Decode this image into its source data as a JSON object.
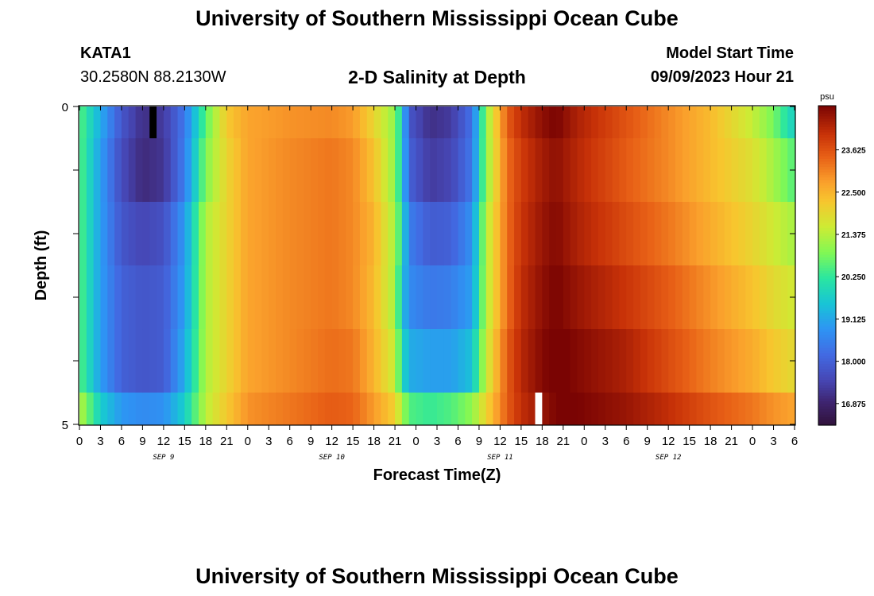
{
  "header": {
    "title": "University of Southern Mississippi Ocean Cube",
    "station": "KATA1",
    "coords": "30.2580N  88.2130W",
    "chart_title": "2-D Salinity at Depth",
    "model_start_label": "Model Start Time",
    "model_start_value": "09/09/2023 Hour 21"
  },
  "footer": {
    "title": "University of Southern Mississippi Ocean Cube"
  },
  "chart_data": {
    "type": "heatmap",
    "title": "2-D Salinity at Depth",
    "xlabel": "Forecast Time(Z)",
    "ylabel": "Depth (ft)",
    "x_tick_labels": [
      "0",
      "3",
      "6",
      "9",
      "12",
      "15",
      "18",
      "21",
      "0",
      "3",
      "6",
      "9",
      "12",
      "15",
      "18",
      "21",
      "0",
      "3",
      "6",
      "9",
      "12",
      "15",
      "18",
      "21",
      "0",
      "3",
      "6",
      "9",
      "12",
      "15",
      "18",
      "21",
      "0",
      "3",
      "6"
    ],
    "x_hours": [
      0,
      3,
      6,
      9,
      12,
      15,
      18,
      21,
      24,
      27,
      30,
      33,
      36,
      39,
      42,
      45,
      48,
      51,
      54,
      57,
      60,
      63,
      66,
      69,
      72,
      75,
      78,
      81,
      84,
      87,
      90,
      93,
      96,
      99,
      102
    ],
    "date_labels": [
      {
        "text": "SEP 9",
        "hour": 12
      },
      {
        "text": "SEP 10",
        "hour": 36
      },
      {
        "text": "SEP 11",
        "hour": 60
      },
      {
        "text": "SEP 12",
        "hour": 84
      }
    ],
    "xlim": [
      0,
      102
    ],
    "y_tick_labels": [
      "0",
      "5"
    ],
    "ylim": [
      0,
      5
    ],
    "depth_bands": [
      {
        "from": 0,
        "to": 0.5
      },
      {
        "from": 0.5,
        "to": 1.5
      },
      {
        "from": 1.5,
        "to": 2.5
      },
      {
        "from": 2.5,
        "to": 3.5
      },
      {
        "from": 3.5,
        "to": 4.5
      },
      {
        "from": 4.5,
        "to": 5
      }
    ],
    "salinity_keyframes": [
      {
        "hour": 0,
        "values": [
          20.6,
          20.6,
          20.6,
          20.6,
          20.6,
          21.4
        ]
      },
      {
        "hour": 3,
        "values": [
          19.2,
          19.0,
          19.0,
          19.0,
          19.0,
          19.7
        ]
      },
      {
        "hour": 6,
        "values": [
          17.8,
          17.6,
          17.8,
          18.0,
          18.0,
          18.9
        ]
      },
      {
        "hour": 9,
        "values": [
          17.1,
          17.0,
          17.5,
          17.8,
          17.8,
          18.7
        ]
      },
      {
        "hour": 12,
        "values": [
          17.3,
          17.2,
          17.7,
          17.9,
          17.9,
          18.8
        ]
      },
      {
        "hour": 15,
        "values": [
          18.4,
          18.5,
          18.9,
          19.0,
          19.2,
          19.7
        ]
      },
      {
        "hour": 18,
        "values": [
          20.6,
          20.9,
          21.3,
          21.3,
          21.3,
          21.4
        ]
      },
      {
        "hour": 21,
        "values": [
          22.2,
          22.0,
          22.0,
          22.0,
          22.0,
          22.2
        ]
      },
      {
        "hour": 24,
        "values": [
          22.7,
          22.7,
          22.7,
          22.7,
          22.7,
          22.9
        ]
      },
      {
        "hour": 30,
        "values": [
          22.9,
          23.0,
          23.0,
          23.0,
          23.0,
          23.2
        ]
      },
      {
        "hour": 36,
        "values": [
          23.0,
          23.2,
          23.2,
          23.2,
          23.3,
          23.5
        ]
      },
      {
        "hour": 39,
        "values": [
          22.8,
          23.0,
          23.0,
          23.0,
          23.2,
          23.4
        ]
      },
      {
        "hour": 42,
        "values": [
          22.0,
          22.3,
          22.5,
          22.4,
          22.5,
          22.8
        ]
      },
      {
        "hour": 45,
        "values": [
          21.0,
          21.0,
          21.2,
          21.2,
          21.5,
          22.1
        ]
      },
      {
        "hour": 46,
        "values": [
          19.7,
          19.7,
          20.0,
          19.6,
          20.0,
          21.2
        ]
      },
      {
        "hour": 47,
        "values": [
          17.8,
          18.0,
          18.5,
          18.7,
          19.2,
          20.5
        ]
      },
      {
        "hour": 50,
        "values": [
          17.1,
          17.3,
          17.9,
          18.4,
          19.0,
          20.3
        ]
      },
      {
        "hour": 53,
        "values": [
          17.3,
          17.5,
          18.0,
          18.5,
          19.0,
          20.5
        ]
      },
      {
        "hour": 56,
        "values": [
          18.3,
          18.4,
          18.8,
          19.0,
          19.5,
          21.0
        ]
      },
      {
        "hour": 58,
        "values": [
          21.0,
          21.0,
          21.3,
          21.3,
          21.5,
          22.0
        ]
      },
      {
        "hour": 61,
        "values": [
          23.5,
          23.3,
          23.3,
          23.3,
          23.5,
          23.5
        ]
      },
      {
        "hour": 63,
        "values": [
          24.1,
          23.9,
          24.0,
          24.1,
          24.2,
          24.1
        ]
      },
      {
        "hour": 66,
        "values": [
          24.6,
          24.4,
          24.5,
          24.6,
          24.7,
          24.5
        ]
      },
      {
        "hour": 68,
        "values": [
          24.8,
          24.6,
          24.7,
          24.8,
          24.9,
          24.8
        ]
      },
      {
        "hour": 71,
        "values": [
          24.3,
          24.2,
          24.3,
          24.5,
          24.7,
          24.8
        ]
      },
      {
        "hour": 78,
        "values": [
          23.6,
          23.5,
          23.7,
          24.0,
          24.3,
          24.5
        ]
      },
      {
        "hour": 84,
        "values": [
          23.0,
          23.0,
          23.2,
          23.5,
          23.7,
          24.1
        ]
      },
      {
        "hour": 90,
        "values": [
          22.4,
          22.4,
          22.6,
          22.9,
          23.1,
          23.6
        ]
      },
      {
        "hour": 96,
        "values": [
          21.5,
          21.8,
          22.0,
          22.3,
          22.6,
          23.2
        ]
      },
      {
        "hour": 99,
        "values": [
          20.8,
          21.2,
          21.6,
          21.9,
          22.2,
          22.9
        ]
      },
      {
        "hour": 102,
        "values": [
          19.7,
          20.5,
          21.2,
          21.6,
          21.9,
          22.7
        ]
      }
    ],
    "missing_cells": [
      {
        "hour_from": 10,
        "hour_to": 11,
        "band": 0,
        "color": "#000000"
      },
      {
        "hour_from": 65,
        "hour_to": 66,
        "band": 5,
        "color": "#ffffff"
      }
    ],
    "colorbar": {
      "unit": "psu",
      "min": 16.3,
      "max": 24.8,
      "tick_labels": [
        "16.875",
        "18.000",
        "19.125",
        "20.250",
        "21.375",
        "22.500",
        "23.625"
      ]
    }
  }
}
